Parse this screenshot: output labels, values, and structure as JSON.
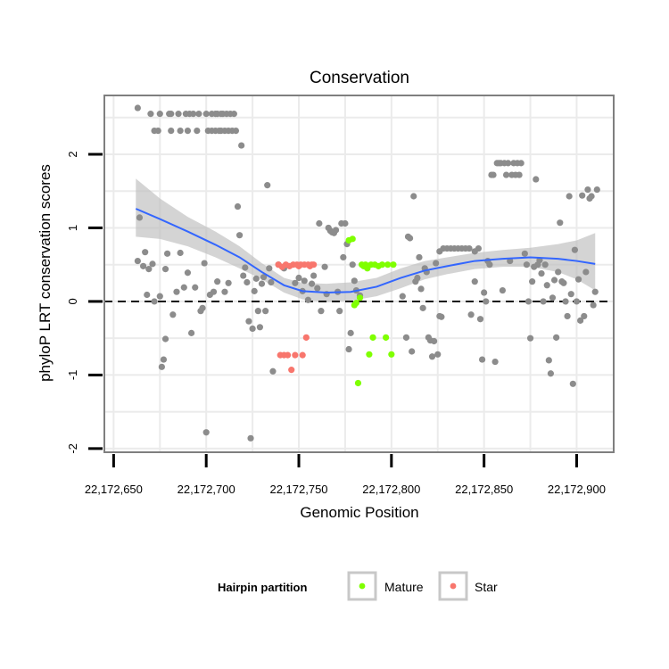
{
  "chart_data": {
    "type": "scatter",
    "title": "Conservation",
    "xlabel": "Genomic Position",
    "ylabel": "phyloP LRT conservation scores",
    "xlim": [
      22172645,
      22172920
    ],
    "ylim": [
      -2.05,
      2.8
    ],
    "x_ticks": [
      22172650,
      22172700,
      22172750,
      22172800,
      22172850,
      22172900
    ],
    "x_tick_labels": [
      "22,172,650",
      "22,172,700",
      "22,172,750",
      "22,172,800",
      "22,172,850",
      "22,172,900"
    ],
    "y_ticks": [
      -2,
      -1,
      0,
      1,
      2
    ],
    "y_tick_labels": [
      "-2",
      "-1",
      "0",
      "1",
      "2"
    ],
    "reference_line": {
      "y": 0,
      "style": "dashed"
    },
    "legend": {
      "title": "Hairpin partition",
      "position": "bottom",
      "entries": [
        {
          "label": "Mature",
          "color": "#7fff00"
        },
        {
          "label": "Star",
          "color": "#f8766d"
        }
      ]
    },
    "colors": {
      "other": "#8c8c8c",
      "mature": "#7fff00",
      "star": "#f8766d",
      "smooth": "#3366ff",
      "ribbon": "#bdbdbd",
      "panel_border": "#7f7f7f",
      "grid": "#ebebeb"
    },
    "smooth": {
      "x": [
        22172662,
        22172675,
        22172690,
        22172705,
        22172718,
        22172730,
        22172742,
        22172752,
        22172765,
        22172778,
        22172792,
        22172805,
        22172818,
        22172830,
        22172845,
        22172860,
        22172875,
        22172890,
        22172900,
        22172910
      ],
      "y": [
        1.26,
        1.12,
        0.95,
        0.77,
        0.6,
        0.4,
        0.22,
        0.14,
        0.12,
        0.13,
        0.2,
        0.32,
        0.42,
        0.48,
        0.55,
        0.58,
        0.6,
        0.58,
        0.55,
        0.51
      ],
      "lower": [
        0.88,
        0.85,
        0.75,
        0.6,
        0.45,
        0.3,
        0.12,
        0.03,
        -0.01,
        0.01,
        0.07,
        0.18,
        0.3,
        0.37,
        0.44,
        0.47,
        0.47,
        0.4,
        0.3,
        0.15
      ],
      "upper": [
        1.67,
        1.4,
        1.15,
        0.95,
        0.75,
        0.52,
        0.32,
        0.25,
        0.24,
        0.26,
        0.32,
        0.45,
        0.55,
        0.6,
        0.66,
        0.7,
        0.73,
        0.78,
        0.83,
        0.93
      ]
    },
    "series": [
      {
        "name": "Other",
        "points": [
          [
            22172663,
            2.63
          ],
          [
            22172663,
            0.55
          ],
          [
            22172664,
            1.14
          ],
          [
            22172666,
            0.48
          ],
          [
            22172667,
            0.67
          ],
          [
            22172668,
            0.09
          ],
          [
            22172669,
            0.44
          ],
          [
            22172670,
            2.55
          ],
          [
            22172671,
            0.51
          ],
          [
            22172672,
            0.0
          ],
          [
            22172672,
            2.32
          ],
          [
            22172674,
            2.32
          ],
          [
            22172675,
            2.55
          ],
          [
            22172675,
            0.07
          ],
          [
            22172676,
            -0.89
          ],
          [
            22172677,
            -0.79
          ],
          [
            22172678,
            -0.51
          ],
          [
            22172678,
            0.44
          ],
          [
            22172679,
            0.65
          ],
          [
            22172680,
            2.55
          ],
          [
            22172681,
            2.55
          ],
          [
            22172681,
            2.32
          ],
          [
            22172682,
            -0.18
          ],
          [
            22172684,
            0.13
          ],
          [
            22172685,
            2.55
          ],
          [
            22172686,
            2.32
          ],
          [
            22172686,
            0.66
          ],
          [
            22172688,
            0.19
          ],
          [
            22172689,
            2.55
          ],
          [
            22172690,
            2.32
          ],
          [
            22172690,
            0.39
          ],
          [
            22172691,
            2.55
          ],
          [
            22172692,
            -0.43
          ],
          [
            22172693,
            2.55
          ],
          [
            22172694,
            0.19
          ],
          [
            22172695,
            2.32
          ],
          [
            22172696,
            2.55
          ],
          [
            22172697,
            -0.13
          ],
          [
            22172698,
            -0.09
          ],
          [
            22172699,
            0.52
          ],
          [
            22172700,
            2.55
          ],
          [
            22172700,
            -1.78
          ],
          [
            22172701,
            2.32
          ],
          [
            22172702,
            0.09
          ],
          [
            22172703,
            2.55
          ],
          [
            22172703,
            2.32
          ],
          [
            22172704,
            0.13
          ],
          [
            22172705,
            2.55
          ],
          [
            22172705,
            2.32
          ],
          [
            22172706,
            2.55
          ],
          [
            22172706,
            0.27
          ],
          [
            22172707,
            2.32
          ],
          [
            22172708,
            2.55
          ],
          [
            22172708,
            2.32
          ],
          [
            22172709,
            2.55
          ],
          [
            22172710,
            2.32
          ],
          [
            22172710,
            0.13
          ],
          [
            22172711,
            2.55
          ],
          [
            22172712,
            2.32
          ],
          [
            22172712,
            0.25
          ],
          [
            22172713,
            2.55
          ],
          [
            22172714,
            2.32
          ],
          [
            22172715,
            2.55
          ],
          [
            22172716,
            2.32
          ],
          [
            22172717,
            1.29
          ],
          [
            22172718,
            0.9
          ],
          [
            22172719,
            2.12
          ],
          [
            22172720,
            0.35
          ],
          [
            22172721,
            0.46
          ],
          [
            22172722,
            0.26
          ],
          [
            22172723,
            -0.27
          ],
          [
            22172724,
            -1.86
          ],
          [
            22172725,
            -0.37
          ],
          [
            22172726,
            0.14
          ],
          [
            22172727,
            0.31
          ],
          [
            22172728,
            -0.13
          ],
          [
            22172729,
            -0.35
          ],
          [
            22172730,
            0.24
          ],
          [
            22172731,
            0.33
          ],
          [
            22172732,
            -0.13
          ],
          [
            22172733,
            1.58
          ],
          [
            22172734,
            0.45
          ],
          [
            22172735,
            0.26
          ],
          [
            22172736,
            -0.95
          ],
          [
            22172739,
            0.5
          ],
          [
            22172742,
            0.45
          ],
          [
            22172748,
            0.25
          ],
          [
            22172750,
            0.32
          ],
          [
            22172752,
            0.14
          ],
          [
            22172753,
            0.28
          ],
          [
            22172755,
            0.02
          ],
          [
            22172757,
            0.24
          ],
          [
            22172758,
            0.35
          ],
          [
            22172760,
            0.18
          ],
          [
            22172761,
            1.06
          ],
          [
            22172762,
            -0.13
          ],
          [
            22172764,
            0.47
          ],
          [
            22172765,
            0.1
          ],
          [
            22172766,
            1.0
          ],
          [
            22172767,
            0.96
          ],
          [
            22172768,
            0.94
          ],
          [
            22172769,
            0.93
          ],
          [
            22172770,
            0.97
          ],
          [
            22172771,
            0.13
          ],
          [
            22172772,
            -0.13
          ],
          [
            22172773,
            1.06
          ],
          [
            22172774,
            0.6
          ],
          [
            22172775,
            1.06
          ],
          [
            22172776,
            0.78
          ],
          [
            22172777,
            -0.65
          ],
          [
            22172778,
            -0.43
          ],
          [
            22172779,
            0.5
          ],
          [
            22172780,
            0.28
          ],
          [
            22172781,
            0.15
          ],
          [
            22172783,
            0.08
          ],
          [
            22172806,
            0.07
          ],
          [
            22172808,
            -0.49
          ],
          [
            22172809,
            0.88
          ],
          [
            22172810,
            0.86
          ],
          [
            22172811,
            -0.68
          ],
          [
            22172812,
            1.43
          ],
          [
            22172813,
            0.27
          ],
          [
            22172814,
            0.32
          ],
          [
            22172815,
            0.6
          ],
          [
            22172816,
            0.17
          ],
          [
            22172817,
            -0.09
          ],
          [
            22172818,
            0.45
          ],
          [
            22172819,
            0.4
          ],
          [
            22172820,
            -0.49
          ],
          [
            22172821,
            -0.53
          ],
          [
            22172822,
            -0.75
          ],
          [
            22172823,
            -0.54
          ],
          [
            22172824,
            0.52
          ],
          [
            22172825,
            -0.72
          ],
          [
            22172826,
            0.68
          ],
          [
            22172826,
            -0.2
          ],
          [
            22172827,
            -0.21
          ],
          [
            22172828,
            0.72
          ],
          [
            22172830,
            0.72
          ],
          [
            22172832,
            0.72
          ],
          [
            22172834,
            0.72
          ],
          [
            22172836,
            0.72
          ],
          [
            22172838,
            0.72
          ],
          [
            22172840,
            0.72
          ],
          [
            22172842,
            0.72
          ],
          [
            22172843,
            -0.18
          ],
          [
            22172845,
            0.27
          ],
          [
            22172845,
            0.68
          ],
          [
            22172847,
            0.72
          ],
          [
            22172848,
            -0.24
          ],
          [
            22172849,
            -0.79
          ],
          [
            22172850,
            0.12
          ],
          [
            22172851,
            0.0
          ],
          [
            22172852,
            0.55
          ],
          [
            22172853,
            0.5
          ],
          [
            22172854,
            1.72
          ],
          [
            22172855,
            1.72
          ],
          [
            22172856,
            -0.82
          ],
          [
            22172857,
            1.88
          ],
          [
            22172858,
            1.88
          ],
          [
            22172859,
            1.88
          ],
          [
            22172860,
            0.15
          ],
          [
            22172861,
            1.88
          ],
          [
            22172862,
            1.72
          ],
          [
            22172863,
            1.88
          ],
          [
            22172864,
            0.55
          ],
          [
            22172865,
            1.72
          ],
          [
            22172866,
            1.88
          ],
          [
            22172867,
            1.72
          ],
          [
            22172868,
            1.88
          ],
          [
            22172869,
            1.72
          ],
          [
            22172870,
            1.88
          ],
          [
            22172872,
            0.65
          ],
          [
            22172873,
            0.5
          ],
          [
            22172874,
            0.0
          ],
          [
            22172875,
            -0.5
          ],
          [
            22172876,
            0.27
          ],
          [
            22172877,
            0.47
          ],
          [
            22172878,
            1.66
          ],
          [
            22172879,
            0.5
          ],
          [
            22172880,
            0.56
          ],
          [
            22172881,
            0.38
          ],
          [
            22172882,
            0.0
          ],
          [
            22172883,
            0.5
          ],
          [
            22172884,
            0.22
          ],
          [
            22172885,
            -0.8
          ],
          [
            22172886,
            -0.98
          ],
          [
            22172887,
            0.05
          ],
          [
            22172888,
            0.29
          ],
          [
            22172889,
            -0.49
          ],
          [
            22172890,
            0.4
          ],
          [
            22172891,
            1.07
          ],
          [
            22172892,
            0.27
          ],
          [
            22172893,
            0.25
          ],
          [
            22172894,
            0.0
          ],
          [
            22172895,
            -0.2
          ],
          [
            22172896,
            1.43
          ],
          [
            22172897,
            0.1
          ],
          [
            22172898,
            -1.12
          ],
          [
            22172899,
            0.7
          ],
          [
            22172900,
            0.0
          ],
          [
            22172901,
            0.3
          ],
          [
            22172902,
            -0.26
          ],
          [
            22172903,
            1.44
          ],
          [
            22172904,
            -0.2
          ],
          [
            22172905,
            0.4
          ],
          [
            22172906,
            1.52
          ],
          [
            22172907,
            1.4
          ],
          [
            22172908,
            1.43
          ],
          [
            22172909,
            -0.05
          ],
          [
            22172910,
            0.13
          ],
          [
            22172911,
            1.52
          ]
        ]
      },
      {
        "name": "Mature",
        "points": [
          [
            22172777,
            0.83
          ],
          [
            22172779,
            0.85
          ],
          [
            22172780,
            -0.05
          ],
          [
            22172781,
            -0.02
          ],
          [
            22172782,
            -1.11
          ],
          [
            22172783,
            0.05
          ],
          [
            22172784,
            0.5
          ],
          [
            22172785,
            0.48
          ],
          [
            22172786,
            0.5
          ],
          [
            22172787,
            0.45
          ],
          [
            22172788,
            -0.72
          ],
          [
            22172789,
            0.5
          ],
          [
            22172790,
            -0.49
          ],
          [
            22172791,
            0.5
          ],
          [
            22172793,
            0.48
          ],
          [
            22172795,
            0.5
          ],
          [
            22172797,
            -0.49
          ],
          [
            22172798,
            0.5
          ],
          [
            22172800,
            -0.72
          ],
          [
            22172801,
            0.5
          ]
        ]
      },
      {
        "name": "Star",
        "points": [
          [
            22172739,
            0.5
          ],
          [
            22172740,
            -0.73
          ],
          [
            22172741,
            0.47
          ],
          [
            22172742,
            -0.73
          ],
          [
            22172743,
            0.5
          ],
          [
            22172744,
            -0.73
          ],
          [
            22172745,
            0.48
          ],
          [
            22172746,
            -0.93
          ],
          [
            22172747,
            0.5
          ],
          [
            22172748,
            -0.73
          ],
          [
            22172749,
            0.5
          ],
          [
            22172750,
            0.48
          ],
          [
            22172751,
            0.5
          ],
          [
            22172752,
            -0.73
          ],
          [
            22172753,
            0.5
          ],
          [
            22172754,
            -0.49
          ],
          [
            22172755,
            0.5
          ],
          [
            22172756,
            0.48
          ],
          [
            22172757,
            0.5
          ],
          [
            22172758,
            0.5
          ]
        ]
      }
    ]
  }
}
